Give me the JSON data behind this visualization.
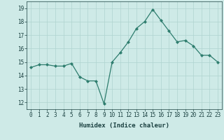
{
  "xlabel": "Humidex (Indice chaleur)",
  "x": [
    0,
    1,
    2,
    3,
    4,
    5,
    6,
    7,
    8,
    9,
    10,
    11,
    12,
    13,
    14,
    15,
    16,
    17,
    18,
    19,
    20,
    21,
    22,
    23
  ],
  "y": [
    14.6,
    14.8,
    14.8,
    14.7,
    14.7,
    14.9,
    13.9,
    13.6,
    13.6,
    11.9,
    15.0,
    15.7,
    16.5,
    17.5,
    18.0,
    18.9,
    18.1,
    17.3,
    16.5,
    16.6,
    16.2,
    15.5,
    15.5,
    15.0
  ],
  "line_color": "#2e7d6e",
  "marker": "D",
  "marker_size": 2.0,
  "line_width": 0.9,
  "bg_color": "#ceeae7",
  "grid_color": "#afd4d0",
  "tick_label_color": "#1a4040",
  "ylim": [
    11.5,
    19.5
  ],
  "xlim": [
    -0.5,
    23.5
  ],
  "yticks": [
    12,
    13,
    14,
    15,
    16,
    17,
    18,
    19
  ],
  "xticks": [
    0,
    1,
    2,
    3,
    4,
    5,
    6,
    7,
    8,
    9,
    10,
    11,
    12,
    13,
    14,
    15,
    16,
    17,
    18,
    19,
    20,
    21,
    22,
    23
  ],
  "xtick_labels": [
    "0",
    "1",
    "2",
    "3",
    "4",
    "5",
    "6",
    "7",
    "8",
    "9",
    "10",
    "11",
    "12",
    "13",
    "14",
    "15",
    "16",
    "17",
    "18",
    "19",
    "20",
    "21",
    "22",
    "23"
  ],
  "xlabel_fontsize": 6.5,
  "tick_fontsize": 5.5,
  "ytick_fontsize": 5.5
}
